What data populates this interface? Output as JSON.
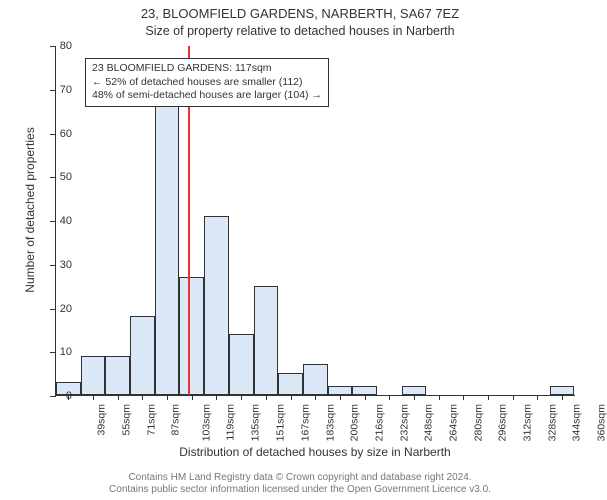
{
  "chart": {
    "type": "histogram",
    "title_main": "23, BLOOMFIELD GARDENS, NARBERTH, SA67 7EZ",
    "title_sub": "Size of property relative to detached houses in Narberth",
    "ylabel": "Number of detached properties",
    "xlabel": "Distribution of detached houses by size in Narberth",
    "background_color": "#ffffff",
    "bar_fill": "#dbe8f8",
    "bar_stroke": "#333333",
    "axis_color": "#333333",
    "vline_color": "#ee3030",
    "vline_x_value": 117,
    "xlim": [
      31,
      368
    ],
    "ylim": [
      0,
      80
    ],
    "ytick_step": 10,
    "bin_width": 16,
    "bins": [
      {
        "start": 31,
        "label": "39sqm",
        "count": 3
      },
      {
        "start": 47,
        "label": "55sqm",
        "count": 9
      },
      {
        "start": 63,
        "label": "71sqm",
        "count": 9
      },
      {
        "start": 79,
        "label": "87sqm",
        "count": 18
      },
      {
        "start": 95,
        "label": "103sqm",
        "count": 67
      },
      {
        "start": 111,
        "label": "119sqm",
        "count": 27
      },
      {
        "start": 127,
        "label": "135sqm",
        "count": 41
      },
      {
        "start": 143,
        "label": "151sqm",
        "count": 14
      },
      {
        "start": 159,
        "label": "167sqm",
        "count": 25
      },
      {
        "start": 175,
        "label": "183sqm",
        "count": 5
      },
      {
        "start": 191,
        "label": "200sqm",
        "count": 7
      },
      {
        "start": 207,
        "label": "216sqm",
        "count": 2
      },
      {
        "start": 223,
        "label": "232sqm",
        "count": 2
      },
      {
        "start": 239,
        "label": "248sqm",
        "count": 0
      },
      {
        "start": 255,
        "label": "264sqm",
        "count": 2
      },
      {
        "start": 271,
        "label": "280sqm",
        "count": 0
      },
      {
        "start": 287,
        "label": "296sqm",
        "count": 0
      },
      {
        "start": 303,
        "label": "312sqm",
        "count": 0
      },
      {
        "start": 319,
        "label": "328sqm",
        "count": 0
      },
      {
        "start": 335,
        "label": "344sqm",
        "count": 0
      },
      {
        "start": 351,
        "label": "360sqm",
        "count": 2
      }
    ],
    "info_box": {
      "line1": "23 BLOOMFIELD GARDENS: 117sqm",
      "line2": "← 52% of detached houses are smaller (112)",
      "line3": "48% of semi-detached houses are larger (104) →"
    },
    "attribution": {
      "line1": "Contains HM Land Registry data © Crown copyright and database right 2024.",
      "line2": "Contains public sector information licensed under the Open Government Licence v3.0."
    },
    "label_fontsize": 12,
    "tick_fontsize": 11,
    "title_fontsize": 13
  }
}
